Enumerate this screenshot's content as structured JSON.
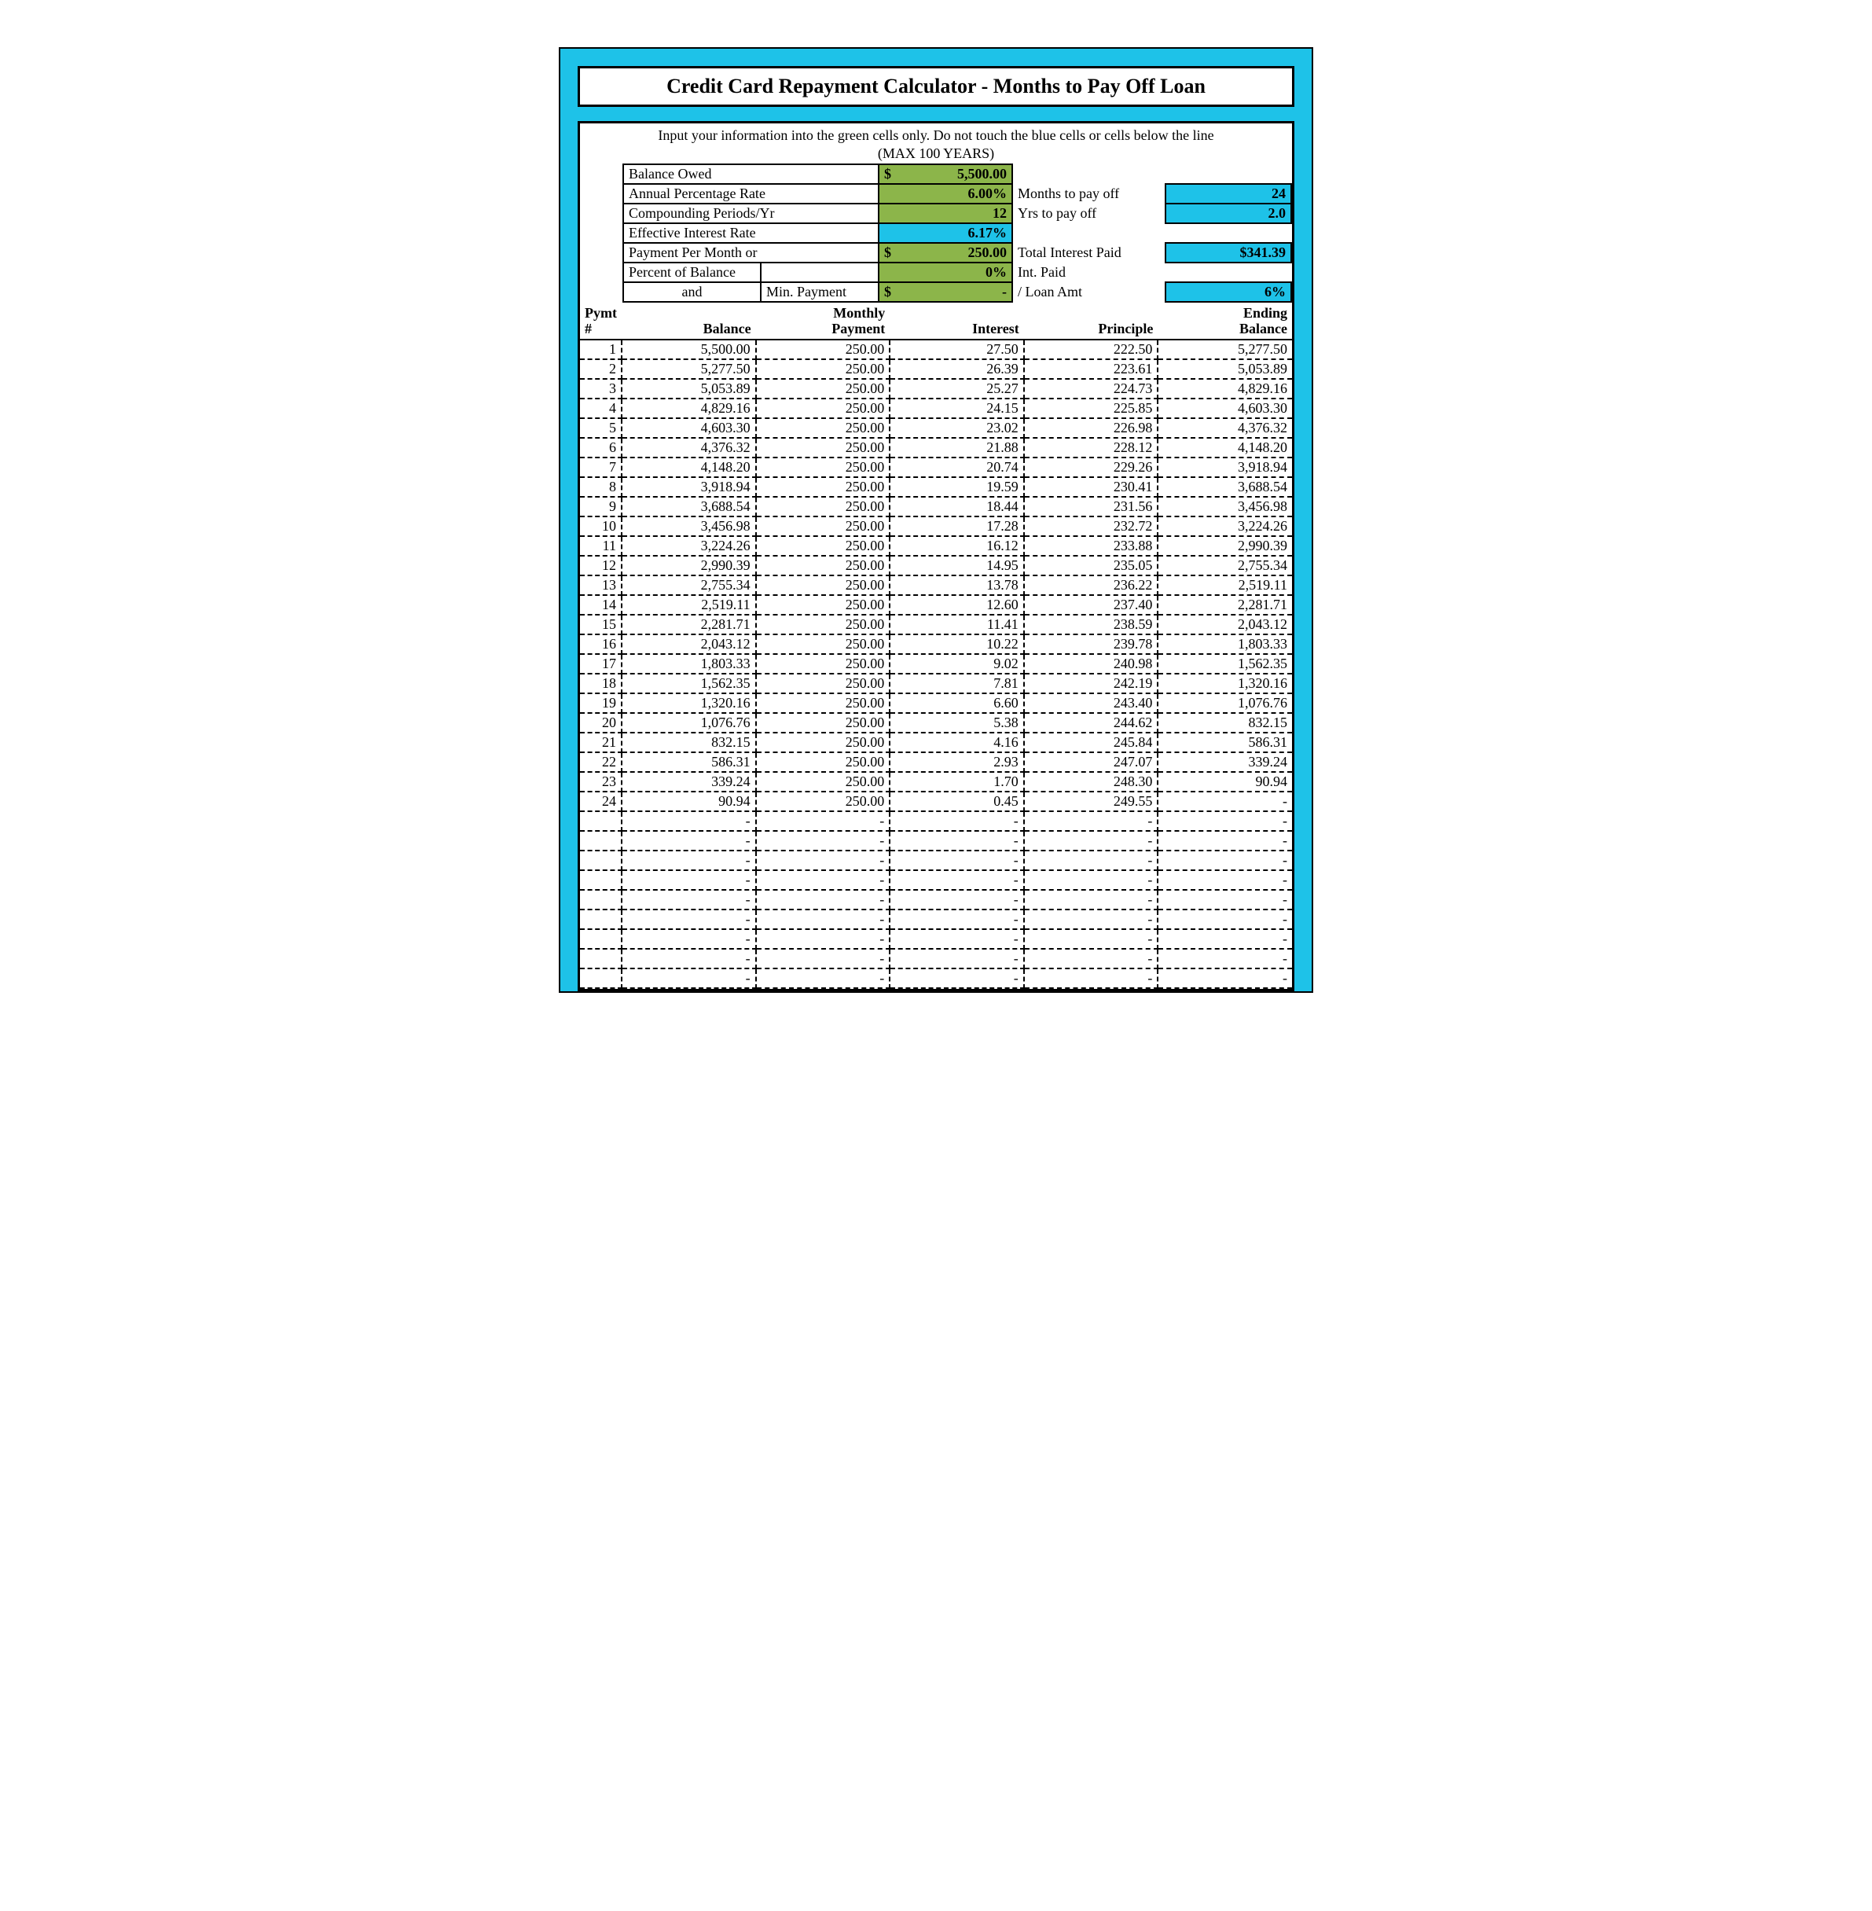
{
  "colors": {
    "frame": "#1ec2e8",
    "border": "#000000",
    "green": "#8cb54a",
    "blue": "#1ec2e8",
    "white": "#ffffff"
  },
  "title": "Credit Card Repayment Calculator - Months to Pay Off Loan",
  "instructions_line1": "Input your information into the green cells only.  Do not touch the blue cells or cells below the line",
  "instructions_line2": "(MAX 100 YEARS)",
  "inputs": {
    "balance_owed_label": "Balance Owed",
    "balance_owed_value": "5,500.00",
    "apr_label": "Annual Percentage Rate",
    "apr_value": "6.00%",
    "compounding_label": "Compounding Periods/Yr",
    "compounding_value": "12",
    "eff_rate_label": "Effective Interest Rate",
    "eff_rate_value": "6.17%",
    "payment_label": "Payment Per Month or",
    "payment_value": "250.00",
    "pct_balance_label": "Percent of Balance",
    "pct_balance_value": "0%",
    "and_label": "and",
    "min_payment_label": "Min. Payment",
    "min_payment_value": "-"
  },
  "outputs": {
    "months_label": "Months to pay off",
    "months_value": "24",
    "years_label": "Yrs to pay off",
    "years_value": "2.0",
    "total_int_label": "Total Interest Paid",
    "total_int_value": "$341.39",
    "int_paid_label": "Int. Paid",
    "loan_amt_label": "/ Loan Amt",
    "int_paid_pct_value": "6%"
  },
  "currency_symbol": "$",
  "amort": {
    "headers": {
      "pymt": "Pymt\n#",
      "balance": "Balance",
      "monthly": "Monthly\nPayment",
      "interest": "Interest",
      "principle": "Principle",
      "ending": "Ending\nBalance"
    },
    "rows": [
      {
        "n": "1",
        "bal": "5,500.00",
        "mp": "250.00",
        "int": "27.50",
        "pri": "222.50",
        "end": "5,277.50"
      },
      {
        "n": "2",
        "bal": "5,277.50",
        "mp": "250.00",
        "int": "26.39",
        "pri": "223.61",
        "end": "5,053.89"
      },
      {
        "n": "3",
        "bal": "5,053.89",
        "mp": "250.00",
        "int": "25.27",
        "pri": "224.73",
        "end": "4,829.16"
      },
      {
        "n": "4",
        "bal": "4,829.16",
        "mp": "250.00",
        "int": "24.15",
        "pri": "225.85",
        "end": "4,603.30"
      },
      {
        "n": "5",
        "bal": "4,603.30",
        "mp": "250.00",
        "int": "23.02",
        "pri": "226.98",
        "end": "4,376.32"
      },
      {
        "n": "6",
        "bal": "4,376.32",
        "mp": "250.00",
        "int": "21.88",
        "pri": "228.12",
        "end": "4,148.20"
      },
      {
        "n": "7",
        "bal": "4,148.20",
        "mp": "250.00",
        "int": "20.74",
        "pri": "229.26",
        "end": "3,918.94"
      },
      {
        "n": "8",
        "bal": "3,918.94",
        "mp": "250.00",
        "int": "19.59",
        "pri": "230.41",
        "end": "3,688.54"
      },
      {
        "n": "9",
        "bal": "3,688.54",
        "mp": "250.00",
        "int": "18.44",
        "pri": "231.56",
        "end": "3,456.98"
      },
      {
        "n": "10",
        "bal": "3,456.98",
        "mp": "250.00",
        "int": "17.28",
        "pri": "232.72",
        "end": "3,224.26"
      },
      {
        "n": "11",
        "bal": "3,224.26",
        "mp": "250.00",
        "int": "16.12",
        "pri": "233.88",
        "end": "2,990.39"
      },
      {
        "n": "12",
        "bal": "2,990.39",
        "mp": "250.00",
        "int": "14.95",
        "pri": "235.05",
        "end": "2,755.34"
      },
      {
        "n": "13",
        "bal": "2,755.34",
        "mp": "250.00",
        "int": "13.78",
        "pri": "236.22",
        "end": "2,519.11"
      },
      {
        "n": "14",
        "bal": "2,519.11",
        "mp": "250.00",
        "int": "12.60",
        "pri": "237.40",
        "end": "2,281.71"
      },
      {
        "n": "15",
        "bal": "2,281.71",
        "mp": "250.00",
        "int": "11.41",
        "pri": "238.59",
        "end": "2,043.12"
      },
      {
        "n": "16",
        "bal": "2,043.12",
        "mp": "250.00",
        "int": "10.22",
        "pri": "239.78",
        "end": "1,803.33"
      },
      {
        "n": "17",
        "bal": "1,803.33",
        "mp": "250.00",
        "int": "9.02",
        "pri": "240.98",
        "end": "1,562.35"
      },
      {
        "n": "18",
        "bal": "1,562.35",
        "mp": "250.00",
        "int": "7.81",
        "pri": "242.19",
        "end": "1,320.16"
      },
      {
        "n": "19",
        "bal": "1,320.16",
        "mp": "250.00",
        "int": "6.60",
        "pri": "243.40",
        "end": "1,076.76"
      },
      {
        "n": "20",
        "bal": "1,076.76",
        "mp": "250.00",
        "int": "5.38",
        "pri": "244.62",
        "end": "832.15"
      },
      {
        "n": "21",
        "bal": "832.15",
        "mp": "250.00",
        "int": "4.16",
        "pri": "245.84",
        "end": "586.31"
      },
      {
        "n": "22",
        "bal": "586.31",
        "mp": "250.00",
        "int": "2.93",
        "pri": "247.07",
        "end": "339.24"
      },
      {
        "n": "23",
        "bal": "339.24",
        "mp": "250.00",
        "int": "1.70",
        "pri": "248.30",
        "end": "90.94"
      },
      {
        "n": "24",
        "bal": "90.94",
        "mp": "250.00",
        "int": "0.45",
        "pri": "249.55",
        "end": "-"
      }
    ],
    "empty_rows": 9,
    "dash": "-"
  }
}
